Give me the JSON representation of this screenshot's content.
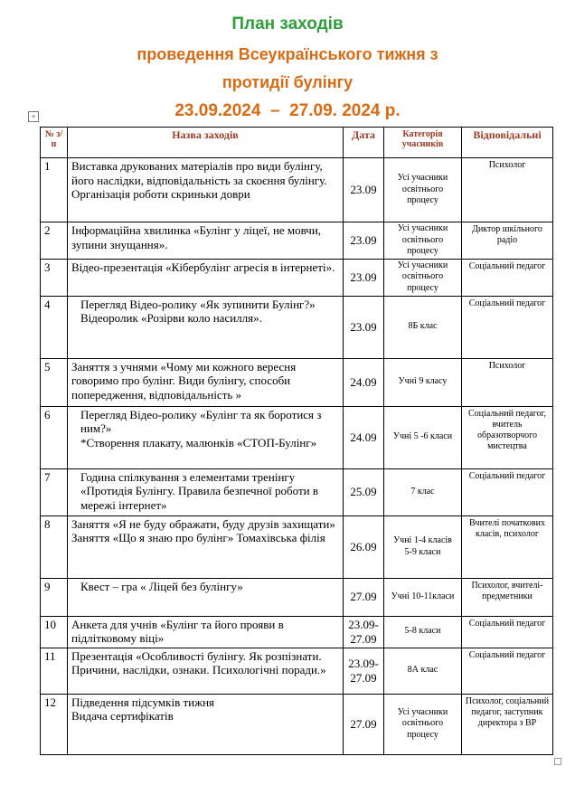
{
  "header": {
    "line1": "План заходів",
    "line2": "проведення Всеукраїнського тижня з",
    "line3": "протидії булінгу",
    "dates": "23.09.2024  –  27.09. 2024 р."
  },
  "table": {
    "columns": [
      "№ з/п",
      "Назва заходів",
      "Дата",
      "Категорія учасників",
      "Відповідальні"
    ],
    "rows": [
      {
        "no": "1",
        "name": [
          "Виставка друкованих матеріалів про види булінгу, його наслідки, відповідальність за скоєння булінгу.",
          "Організація роботи скриньки доври"
        ],
        "date": "23.09",
        "category": [
          "Усі учасники освітнього процесу"
        ],
        "responsible": "Психолог"
      },
      {
        "no": "2",
        "name": [
          "Інформаційна хвилинка «Булінг у ліцеї, не мовчи, зупини знущання»."
        ],
        "date": "23.09",
        "category": [
          "Усі учасники освітнього процесу"
        ],
        "responsible": "Диктор шкільного радіо"
      },
      {
        "no": "3",
        "name": [
          "Відео-презентація «Кібербулінг агресія в інтернеті»."
        ],
        "date": "23.09",
        "category": [
          "Усі учасники освітнього процесу"
        ],
        "responsible": "Соціальний педагог"
      },
      {
        "no": "4",
        "name": [
          "Перегляд Відео-ролику  «Як зупинити Булінг?»",
          "Відеоролик «Розірви коло насилля»."
        ],
        "date": "23.09",
        "category": [
          "8Б клас"
        ],
        "responsible": "Соціальний педагог"
      },
      {
        "no": "5",
        "name": [
          "Заняття з учнями «Чому ми кожного вересня говоримо про булінг. Види булінгу, способи попередження, відповідальність »"
        ],
        "date": "24.09",
        "category": [
          "Учні 9 класу"
        ],
        "responsible": "Психолог"
      },
      {
        "no": "6",
        "name": [
          "Перегляд Відео-ролику «Булінг та як боротися з ним?»",
          "*Створення плакату, малюнків «СТОП-Булінг»"
        ],
        "date": "24.09",
        "category": [
          "Учні 5 -6 класи"
        ],
        "responsible": "Соціальний педагог, вчитель образотворчого мистецтва"
      },
      {
        "no": "7",
        "name": [
          "Година спілкування з елементами тренінгу «Протидія Булінгу. Правила безпечної роботи в мережі інтернет»"
        ],
        "date": "25.09",
        "category": [
          "7 клас"
        ],
        "responsible": "Соціальний педагог"
      },
      {
        "no": "8",
        "name": [
          "Заняття «Я не буду ображати, буду друзів захищати»",
          "Заняття «Що я знаю про булінг» Томахівська філія"
        ],
        "date": "26.09",
        "category": [
          "Учні 1-4 класів",
          "5-9 класи"
        ],
        "responsible": "Вчителі початкових класів, психолог"
      },
      {
        "no": "9",
        "name": [
          "Квест – гра « Ліцей без булінгу»"
        ],
        "date": "27.09",
        "category": [
          "Учні 10-11класи"
        ],
        "responsible": "Психолог, вчителі-предметники"
      },
      {
        "no": "10",
        "name": [
          "Анкета для учнів «Булінг та його прояви в підлітковому віці»"
        ],
        "date": "23.09-27.09",
        "category": [
          "5-8 класи"
        ],
        "responsible": "Соціальний педагог"
      },
      {
        "no": "11",
        "name": [
          "Презентація «Особливості булінгу. Як розпізнати. Причини, наслідки, ознаки. Психологічні поради.»"
        ],
        "date": "23.09-27.09",
        "category": [
          "8А клас"
        ],
        "responsible": "Соціальний педагог"
      },
      {
        "no": "12",
        "name": [
          "Підведення підсумків тижня",
          "Видача сертифікатів"
        ],
        "date": "27.09",
        "category": [
          "Усі учасники освітнього процесу"
        ],
        "responsible": "Психолог, соціальний педагог, заступник директора з ВР"
      }
    ]
  }
}
